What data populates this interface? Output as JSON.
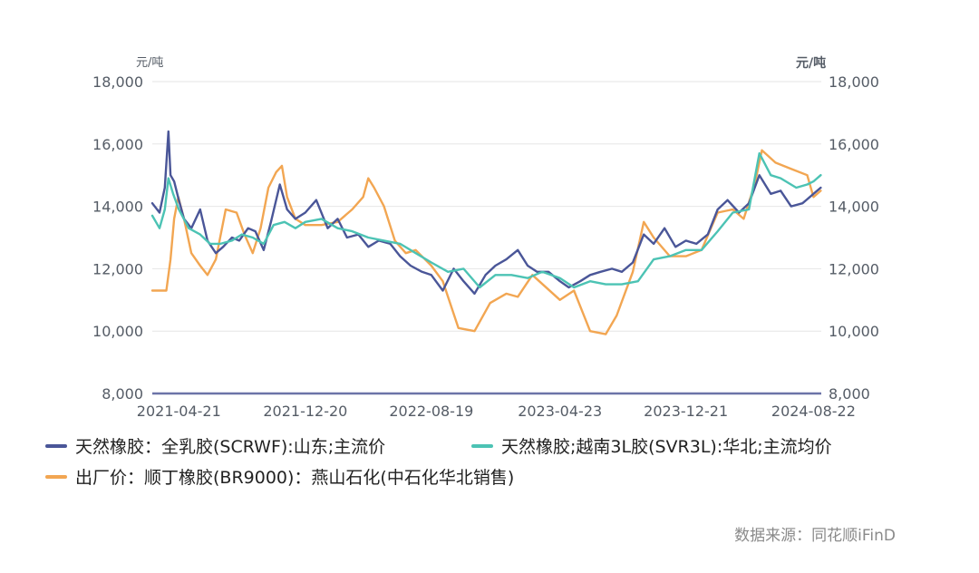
{
  "chart_data": {
    "type": "line",
    "y_unit_left": "元/吨",
    "y_unit_right": "元/吨",
    "ylim": [
      8000,
      18000
    ],
    "y_ticks": [
      "18,000",
      "16,000",
      "14,000",
      "12,000",
      "10,000",
      "8,000"
    ],
    "x_tick_labels": [
      "2021-04-21",
      "2021-12-20",
      "2022-08-19",
      "2023-04-23",
      "2023-12-21",
      "2024-08-22"
    ],
    "xlim": [
      "2021-03-01",
      "2024-09-06"
    ],
    "grid": true,
    "legend_position": "bottom",
    "series": [
      {
        "name": "天然橡胶：全乳胶(SCRWF):山东;主流价",
        "color": "#4a5698",
        "points": [
          [
            "2021-03-01",
            14100
          ],
          [
            "2021-03-15",
            13800
          ],
          [
            "2021-03-25",
            14600
          ],
          [
            "2021-04-01",
            16400
          ],
          [
            "2021-04-05",
            15000
          ],
          [
            "2021-04-12",
            14800
          ],
          [
            "2021-04-21",
            14200
          ],
          [
            "2021-05-01",
            13600
          ],
          [
            "2021-05-15",
            13300
          ],
          [
            "2021-06-01",
            13900
          ],
          [
            "2021-06-15",
            12900
          ],
          [
            "2021-07-01",
            12500
          ],
          [
            "2021-07-15",
            12700
          ],
          [
            "2021-08-01",
            13000
          ],
          [
            "2021-08-15",
            12900
          ],
          [
            "2021-09-01",
            13300
          ],
          [
            "2021-09-15",
            13200
          ],
          [
            "2021-10-01",
            12600
          ],
          [
            "2021-10-15",
            13500
          ],
          [
            "2021-11-01",
            14700
          ],
          [
            "2021-11-15",
            13900
          ],
          [
            "2021-12-01",
            13600
          ],
          [
            "2021-12-20",
            13800
          ],
          [
            "2022-01-10",
            14200
          ],
          [
            "2022-02-01",
            13300
          ],
          [
            "2022-02-20",
            13600
          ],
          [
            "2022-03-10",
            13000
          ],
          [
            "2022-04-01",
            13100
          ],
          [
            "2022-04-20",
            12700
          ],
          [
            "2022-05-10",
            12900
          ],
          [
            "2022-06-01",
            12800
          ],
          [
            "2022-06-20",
            12400
          ],
          [
            "2022-07-10",
            12100
          ],
          [
            "2022-08-01",
            11900
          ],
          [
            "2022-08-19",
            11800
          ],
          [
            "2022-09-10",
            11300
          ],
          [
            "2022-10-01",
            12000
          ],
          [
            "2022-10-20",
            11600
          ],
          [
            "2022-11-10",
            11200
          ],
          [
            "2022-12-01",
            11800
          ],
          [
            "2022-12-20",
            12100
          ],
          [
            "2023-01-10",
            12300
          ],
          [
            "2023-02-01",
            12600
          ],
          [
            "2023-02-20",
            12100
          ],
          [
            "2023-03-10",
            11900
          ],
          [
            "2023-04-01",
            11900
          ],
          [
            "2023-04-23",
            11600
          ],
          [
            "2023-05-10",
            11400
          ],
          [
            "2023-06-01",
            11600
          ],
          [
            "2023-06-20",
            11800
          ],
          [
            "2023-07-10",
            11900
          ],
          [
            "2023-08-01",
            12000
          ],
          [
            "2023-08-20",
            11900
          ],
          [
            "2023-09-10",
            12200
          ],
          [
            "2023-10-01",
            13100
          ],
          [
            "2023-10-20",
            12800
          ],
          [
            "2023-11-10",
            13300
          ],
          [
            "2023-12-01",
            12700
          ],
          [
            "2023-12-21",
            12900
          ],
          [
            "2024-01-10",
            12800
          ],
          [
            "2024-02-01",
            13100
          ],
          [
            "2024-02-20",
            13900
          ],
          [
            "2024-03-10",
            14200
          ],
          [
            "2024-04-01",
            13800
          ],
          [
            "2024-04-20",
            14100
          ],
          [
            "2024-05-10",
            15000
          ],
          [
            "2024-06-01",
            14400
          ],
          [
            "2024-06-20",
            14500
          ],
          [
            "2024-07-10",
            14000
          ],
          [
            "2024-08-01",
            14100
          ],
          [
            "2024-08-22",
            14400
          ],
          [
            "2024-09-05",
            14600
          ]
        ]
      },
      {
        "name": "天然橡胶;越南3L胶(SVR3L):华北;主流均价",
        "color": "#4cc3b4",
        "points": [
          [
            "2021-03-01",
            13700
          ],
          [
            "2021-03-15",
            13300
          ],
          [
            "2021-03-25",
            13900
          ],
          [
            "2021-04-01",
            14900
          ],
          [
            "2021-04-10",
            14400
          ],
          [
            "2021-04-21",
            13900
          ],
          [
            "2021-05-10",
            13300
          ],
          [
            "2021-06-01",
            13100
          ],
          [
            "2021-06-20",
            12800
          ],
          [
            "2021-07-10",
            12800
          ],
          [
            "2021-08-01",
            12900
          ],
          [
            "2021-08-20",
            13100
          ],
          [
            "2021-09-10",
            13000
          ],
          [
            "2021-10-01",
            12800
          ],
          [
            "2021-10-20",
            13400
          ],
          [
            "2021-11-10",
            13500
          ],
          [
            "2021-12-01",
            13300
          ],
          [
            "2021-12-20",
            13500
          ],
          [
            "2022-01-20",
            13600
          ],
          [
            "2022-02-20",
            13300
          ],
          [
            "2022-03-20",
            13200
          ],
          [
            "2022-04-20",
            13000
          ],
          [
            "2022-05-20",
            12900
          ],
          [
            "2022-06-20",
            12800
          ],
          [
            "2022-07-20",
            12500
          ],
          [
            "2022-08-19",
            12200
          ],
          [
            "2022-09-20",
            11900
          ],
          [
            "2022-10-20",
            12000
          ],
          [
            "2022-11-20",
            11400
          ],
          [
            "2022-12-20",
            11800
          ],
          [
            "2023-01-20",
            11800
          ],
          [
            "2023-02-20",
            11700
          ],
          [
            "2023-03-20",
            11900
          ],
          [
            "2023-04-23",
            11700
          ],
          [
            "2023-05-20",
            11400
          ],
          [
            "2023-06-20",
            11600
          ],
          [
            "2023-07-20",
            11500
          ],
          [
            "2023-08-20",
            11500
          ],
          [
            "2023-09-20",
            11600
          ],
          [
            "2023-10-20",
            12300
          ],
          [
            "2023-11-20",
            12400
          ],
          [
            "2023-12-21",
            12600
          ],
          [
            "2024-01-20",
            12600
          ],
          [
            "2024-02-20",
            13200
          ],
          [
            "2024-03-20",
            13800
          ],
          [
            "2024-04-20",
            13900
          ],
          [
            "2024-05-10",
            15700
          ],
          [
            "2024-06-01",
            15000
          ],
          [
            "2024-06-20",
            14900
          ],
          [
            "2024-07-20",
            14600
          ],
          [
            "2024-08-10",
            14700
          ],
          [
            "2024-08-22",
            14800
          ],
          [
            "2024-09-05",
            15000
          ]
        ]
      },
      {
        "name": "出厂价：顺丁橡胶(BR9000)：燕山石化(中石化华北销售)",
        "color": "#f2a652",
        "points": [
          [
            "2021-03-01",
            11300
          ],
          [
            "2021-03-28",
            11300
          ],
          [
            "2021-04-05",
            12300
          ],
          [
            "2021-04-12",
            13600
          ],
          [
            "2021-04-20",
            14300
          ],
          [
            "2021-05-01",
            13600
          ],
          [
            "2021-05-15",
            12500
          ],
          [
            "2021-06-01",
            12100
          ],
          [
            "2021-06-15",
            11800
          ],
          [
            "2021-07-01",
            12300
          ],
          [
            "2021-07-20",
            13900
          ],
          [
            "2021-08-10",
            13800
          ],
          [
            "2021-08-25",
            13100
          ],
          [
            "2021-09-10",
            12500
          ],
          [
            "2021-09-25",
            13300
          ],
          [
            "2021-10-10",
            14600
          ],
          [
            "2021-10-25",
            15100
          ],
          [
            "2021-11-05",
            15300
          ],
          [
            "2021-11-15",
            14300
          ],
          [
            "2021-12-01",
            13600
          ],
          [
            "2021-12-20",
            13400
          ],
          [
            "2022-01-20",
            13400
          ],
          [
            "2022-02-20",
            13500
          ],
          [
            "2022-03-20",
            13900
          ],
          [
            "2022-04-10",
            14300
          ],
          [
            "2022-04-20",
            14900
          ],
          [
            "2022-05-01",
            14600
          ],
          [
            "2022-05-20",
            14000
          ],
          [
            "2022-06-10",
            12900
          ],
          [
            "2022-07-01",
            12500
          ],
          [
            "2022-07-20",
            12600
          ],
          [
            "2022-08-19",
            12100
          ],
          [
            "2022-09-10",
            11600
          ],
          [
            "2022-10-10",
            10100
          ],
          [
            "2022-11-10",
            10000
          ],
          [
            "2022-12-10",
            10900
          ],
          [
            "2023-01-10",
            11200
          ],
          [
            "2023-02-01",
            11100
          ],
          [
            "2023-03-01",
            11800
          ],
          [
            "2023-04-23",
            11000
          ],
          [
            "2023-05-20",
            11300
          ],
          [
            "2023-06-20",
            10000
          ],
          [
            "2023-07-20",
            9900
          ],
          [
            "2023-08-10",
            10500
          ],
          [
            "2023-09-10",
            11900
          ],
          [
            "2023-10-01",
            13500
          ],
          [
            "2023-10-20",
            13000
          ],
          [
            "2023-11-20",
            12400
          ],
          [
            "2023-12-21",
            12400
          ],
          [
            "2024-01-20",
            12600
          ],
          [
            "2024-02-20",
            13800
          ],
          [
            "2024-03-20",
            13900
          ],
          [
            "2024-04-10",
            13600
          ],
          [
            "2024-05-01",
            14700
          ],
          [
            "2024-05-15",
            15800
          ],
          [
            "2024-06-10",
            15400
          ],
          [
            "2024-07-10",
            15200
          ],
          [
            "2024-08-10",
            15000
          ],
          [
            "2024-08-22",
            14300
          ],
          [
            "2024-09-05",
            14500
          ]
        ]
      }
    ]
  },
  "source": "数据来源：同花顺iFinD"
}
